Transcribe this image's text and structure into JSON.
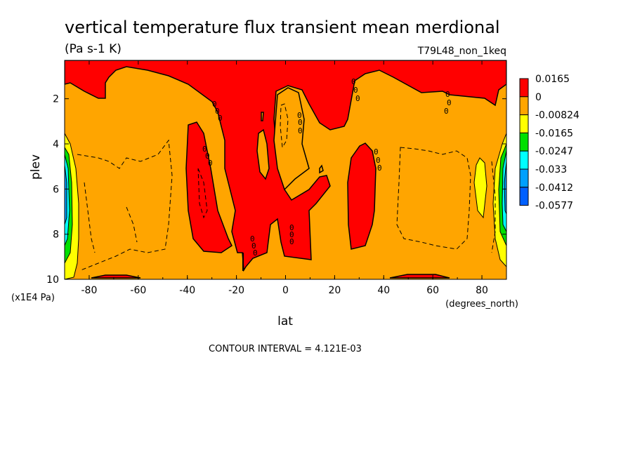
{
  "chart_data": {
    "type": "contour",
    "title": "vertical temperature flux transient mean merdional",
    "units": "(Pa s-1 K)",
    "dataset": "T79L48_non_1keq",
    "xlabel": "lat",
    "xunits": "(degrees_north)",
    "ylabel": "plev",
    "yunits": "(x1E4 Pa)",
    "xlim": [
      -90,
      90
    ],
    "ylim": [
      10,
      0.3
    ],
    "xticks": [
      -80,
      -60,
      -40,
      -20,
      0,
      20,
      40,
      60,
      80
    ],
    "xtick_labels": [
      "-80",
      "-60",
      "-40",
      "-20",
      "0",
      "20",
      "40",
      "60",
      "80"
    ],
    "yticks": [
      2,
      4,
      6,
      8,
      10
    ],
    "ytick_labels": [
      "2",
      "4",
      "6",
      "8",
      "10"
    ],
    "contour_interval_text": "CONTOUR INTERVAL = 4.121E-03",
    "colorbar": {
      "levels": [
        "0.0165",
        "0",
        "-0.00824",
        "-0.0165",
        "-0.0247",
        "-0.033",
        "-0.0412",
        "-0.0577"
      ],
      "colors": [
        "#ff0000",
        "#ffa500",
        "#ffff00",
        "#00e000",
        "#00ffff",
        "#00a0ff",
        "#0060ff"
      ]
    },
    "zero_contour_labels": [
      {
        "lat": -27,
        "plev": 2.5
      },
      {
        "lat": -31,
        "plev": 4.5
      },
      {
        "lat": -13,
        "plev": 8.5
      },
      {
        "lat": 6,
        "plev": 2.9
      },
      {
        "lat": 3,
        "plev": 8.0
      },
      {
        "lat": 28,
        "plev": 1.5
      },
      {
        "lat": 37,
        "plev": 4.6
      },
      {
        "lat": 66,
        "plev": 2.0
      }
    ]
  }
}
